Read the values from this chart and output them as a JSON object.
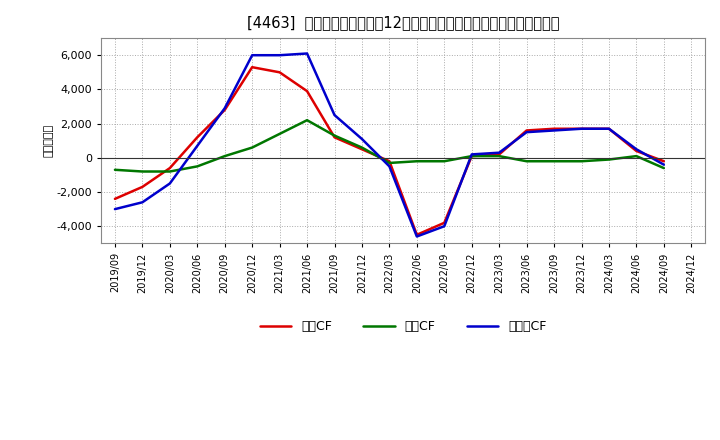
{
  "title": "[4463]  キャッシュフローの12か月移動合計の対前年同期増減額の推移",
  "ylabel": "（百万円）",
  "x_labels": [
    "2019/09",
    "2019/12",
    "2020/03",
    "2020/06",
    "2020/09",
    "2020/12",
    "2021/03",
    "2021/06",
    "2021/09",
    "2021/12",
    "2022/03",
    "2022/06",
    "2022/09",
    "2022/12",
    "2023/03",
    "2023/06",
    "2023/09",
    "2023/12",
    "2024/03",
    "2024/06",
    "2024/09",
    "2024/12"
  ],
  "operating_cf": [
    -2400,
    -1700,
    -600,
    1200,
    2800,
    5300,
    5000,
    3900,
    1200,
    500,
    -200,
    -4500,
    -3800,
    100,
    200,
    1600,
    1700,
    1700,
    1700,
    400,
    -200,
    null
  ],
  "investing_cf": [
    -700,
    -800,
    -800,
    -500,
    100,
    600,
    1400,
    2200,
    1300,
    600,
    -300,
    -200,
    -200,
    100,
    100,
    -200,
    -200,
    -200,
    -100,
    100,
    -600,
    null
  ],
  "free_cf": [
    -3000,
    -2600,
    -1500,
    700,
    2900,
    6000,
    6000,
    6100,
    2500,
    1100,
    -500,
    -4600,
    -4000,
    200,
    300,
    1500,
    1600,
    1700,
    1700,
    500,
    -400,
    null
  ],
  "operating_color": "#dd0000",
  "investing_color": "#007700",
  "free_color": "#0000cc",
  "ylim": [
    -5000,
    7000
  ],
  "yticks": [
    -4000,
    -2000,
    0,
    2000,
    4000,
    6000
  ],
  "bg_color": "#ffffff",
  "plot_bg_color": "#ffffff",
  "grid_color": "#aaaaaa",
  "legend_labels": [
    "営業CF",
    "投資CF",
    "フリーCF"
  ]
}
